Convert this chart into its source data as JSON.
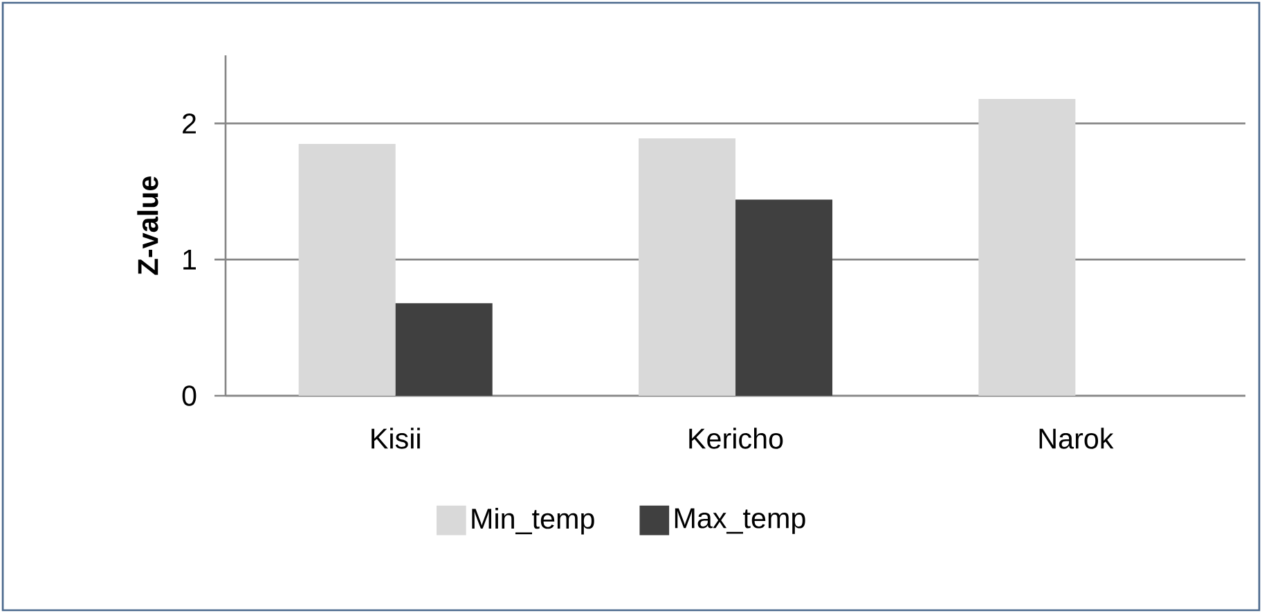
{
  "chart_data": {
    "type": "bar",
    "ylabel": "Z-value",
    "categories": [
      "Kisii",
      "Kericho",
      "Narok"
    ],
    "series": [
      {
        "name": "Min_temp",
        "color": "#d9d9d9",
        "values": [
          1.85,
          1.89,
          2.18
        ]
      },
      {
        "name": "Max_temp",
        "color": "#404040",
        "values": [
          0.68,
          1.44,
          null
        ]
      }
    ],
    "ylim": [
      0,
      2.5
    ],
    "yticks": [
      0,
      1,
      2
    ],
    "grid": "y",
    "legend": "bottom"
  }
}
